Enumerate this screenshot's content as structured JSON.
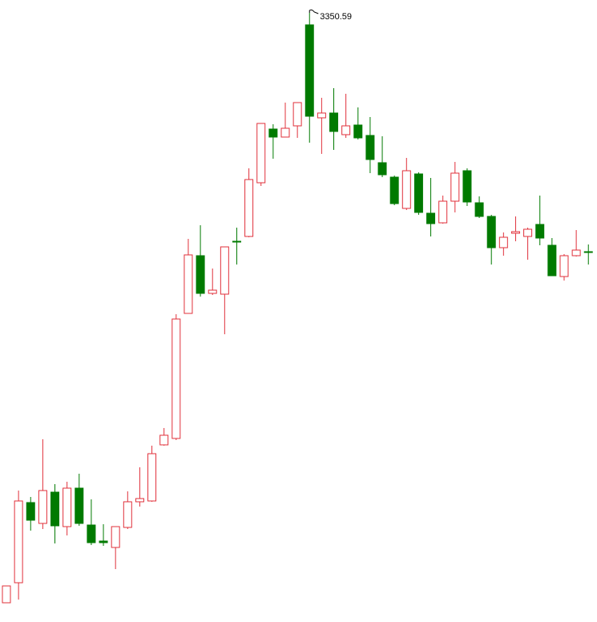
{
  "chart_data": {
    "type": "candlestick",
    "up_color": "#e0303a",
    "down_color": "#007a00",
    "open": [
      2393.8,
      2426.3,
      2556.3,
      2522.5,
      2573.2,
      2517.3,
      2579.7,
      2519.9,
      2493.9,
      2483.5,
      2516.0,
      2557.6,
      2558.9,
      2649.9,
      2660.3,
      2863.1,
      2956.7,
      2895.6,
      2894.3,
      2980.1,
      2987.9,
      3075.0,
      3162.1,
      3149.1,
      3167.3,
      3331.1,
      3180.3,
      3188.1,
      3153.0,
      3168.6,
      3151.7,
      3107.5,
      3084.1,
      3033.4,
      3089.3,
      3025.6,
      3010.0,
      3045.1,
      3094.5,
      3042.5,
      3020.4,
      2969.7,
      2993.1,
      2987.9,
      3007.4,
      2973.6,
      2922.9,
      2956.7,
      2963.2
    ],
    "high": [
      2421.1,
      2575.8,
      2565.4,
      2659.0,
      2586.2,
      2590.1,
      2603.1,
      2561.5,
      2521.2,
      2517.3,
      2574.5,
      2613.5,
      2648.6,
      2677.2,
      2861.8,
      2984.0,
      3006.1,
      2935.9,
      2971.0,
      3002.2,
      3098.4,
      3171.2,
      3169.9,
      3205.0,
      3205.0,
      3350.59,
      3212.8,
      3228.4,
      3219.3,
      3197.2,
      3181.6,
      3150.4,
      3086.7,
      3115.3,
      3091.9,
      3082.8,
      3054.2,
      3108.8,
      3098.4,
      3052.9,
      3023.0,
      2994.4,
      3020.4,
      3002.2,
      3054.2,
      2985.3,
      2959.3,
      2998.3,
      2974.9
    ],
    "low": [
      2393.8,
      2399.0,
      2510.8,
      2513.4,
      2490.0,
      2503.0,
      2518.6,
      2487.4,
      2486.1,
      2448.4,
      2513.4,
      2549.8,
      2557.6,
      2648.6,
      2657.7,
      2863.1,
      2890.4,
      2893.0,
      2829.3,
      2942.4,
      2986.6,
      3069.8,
      3114.0,
      3149.1,
      3147.8,
      3140.0,
      3121.8,
      3128.3,
      3147.8,
      3145.2,
      3090.6,
      3084.1,
      3038.6,
      3030.8,
      3023.0,
      2987.9,
      3008.7,
      3026.9,
      3037.3,
      3017.8,
      2942.4,
      2956.7,
      2980.1,
      2950.2,
      2973.6,
      2924.2,
      2916.4,
      2955.4,
      2942.4
    ],
    "close": [
      2421.1,
      2558.9,
      2527.7,
      2575.8,
      2518.6,
      2579.7,
      2522.5,
      2491.3,
      2491.3,
      2517.3,
      2557.6,
      2562.8,
      2635.6,
      2665.5,
      2854.0,
      2958.0,
      2895.6,
      2900.8,
      2971.0,
      2980.1,
      3080.2,
      3171.2,
      3149.1,
      3163.4,
      3205.0,
      3182.9,
      3188.1,
      3158.2,
      3167.3,
      3147.8,
      3112.7,
      3088.0,
      3041.2,
      3094.5,
      3026.9,
      3008.7,
      3045.1,
      3090.6,
      3043.8,
      3020.4,
      2969.7,
      2986.6,
      2995.7,
      2999.6,
      2985.3,
      2924.2,
      2956.7,
      2965.8,
      2963.2
    ]
  }
}
